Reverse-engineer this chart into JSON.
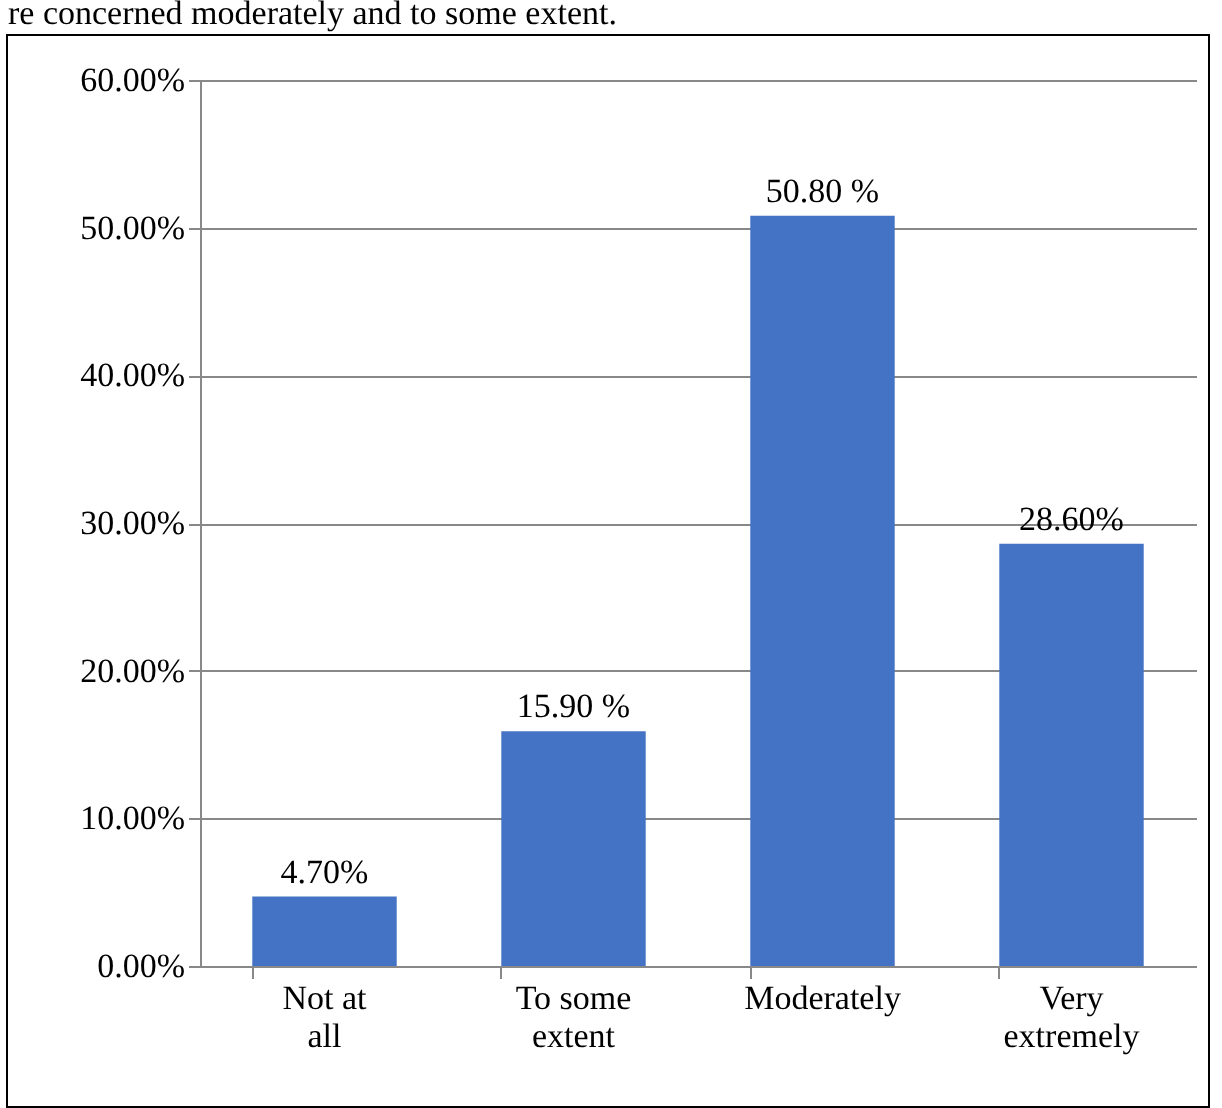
{
  "chart_data": {
    "type": "bar",
    "annotations": [
      "re concerned moderately and to some extent."
    ],
    "categories": [
      "Not at all",
      "To some extent",
      "Moderately",
      "Very extremely"
    ],
    "values": [
      4.7,
      15.9,
      50.8,
      28.6
    ],
    "value_labels": [
      "4.70%",
      "15.90 %",
      "50.80 %",
      "28.60%"
    ],
    "color": "#4472c4",
    "ylim": [
      0,
      60
    ],
    "yticks": [
      {
        "value": 0,
        "label": "0.00%"
      },
      {
        "value": 10,
        "label": "10.00%"
      },
      {
        "value": 20,
        "label": "20.00%"
      },
      {
        "value": 30,
        "label": "30.00%"
      },
      {
        "value": 40,
        "label": "40.00%"
      },
      {
        "value": 50,
        "label": "50.00%"
      },
      {
        "value": 60,
        "label": "60.00%"
      }
    ],
    "grid": "y"
  }
}
